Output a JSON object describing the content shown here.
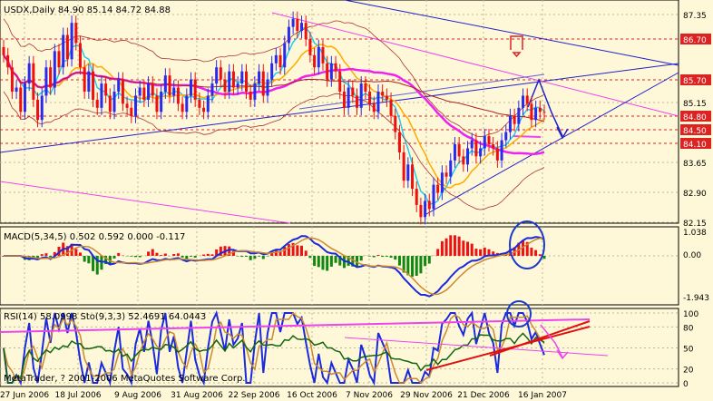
{
  "main_header": "USDX,Daily  84.90 85.14 84.72 84.88",
  "macd_header": "MACD(5,34,5) 0.502 0.592 0.000 -0.117",
  "rsi_header": "RSI(14) 58.0998  Sto(9,3,3) 52.4691 64.0443",
  "copyright": "MetaTrader, ? 2001-2006 MetaQuotes Software Corp.",
  "price_axis": [
    "87.35",
    "86.70",
    "85.70",
    "85.15",
    "84.80",
    "84.50",
    "84.10",
    "83.65",
    "82.90",
    "82.15"
  ],
  "macd_axis": [
    "1.038",
    "0.00",
    "-1.943"
  ],
  "rsi_axis": [
    "100",
    "80",
    "50",
    "20",
    "0"
  ],
  "date_axis": [
    "27 Jun 2006",
    "18 Jul 2006",
    "9 Aug 2006",
    "31 Aug 2006",
    "22 Sep 2006",
    "16 Oct 2006",
    "7 Nov 2006",
    "29 Nov 2006",
    "21 Dec 2006",
    "16 Jan 2007"
  ],
  "chart_data": {
    "type": "candlestick",
    "symbol": "USDX",
    "timeframe": "Daily",
    "last_bar": {
      "open": 84.9,
      "high": 85.14,
      "low": 84.72,
      "close": 84.88
    },
    "ylim": [
      82.15,
      87.35
    ],
    "closes": [
      86.3,
      86.0,
      85.4,
      85.5,
      84.9,
      85.6,
      86.1,
      85.2,
      84.7,
      85.3,
      86.0,
      85.5,
      86.4,
      86.0,
      86.8,
      86.2,
      87.1,
      86.6,
      86.0,
      85.4,
      85.9,
      85.2,
      85.0,
      85.6,
      85.3,
      84.9,
      85.4,
      85.7,
      85.1,
      85.0,
      84.8,
      85.3,
      85.5,
      85.2,
      85.6,
      85.3,
      84.9,
      85.4,
      85.8,
      85.3,
      85.5,
      85.1,
      84.9,
      85.3,
      85.7,
      85.2,
      85.0,
      84.9,
      85.3,
      85.6,
      86.0,
      85.7,
      85.4,
      85.9,
      85.5,
      85.6,
      85.9,
      85.4,
      85.2,
      85.6,
      85.9,
      85.3,
      85.7,
      86.1,
      86.3,
      86.0,
      86.6,
      87.0,
      87.2,
      86.9,
      87.1,
      86.7,
      86.3,
      86.0,
      86.5,
      86.1,
      85.7,
      86.1,
      85.9,
      85.4,
      85.0,
      85.5,
      85.3,
      85.0,
      85.6,
      85.4,
      85.1,
      84.9,
      85.4,
      85.3,
      85.2,
      84.8,
      84.4,
      83.9,
      83.2,
      83.6,
      83.0,
      82.6,
      82.3,
      82.7,
      82.5,
      83.1,
      82.9,
      83.4,
      83.3,
      83.7,
      84.1,
      83.8,
      83.6,
      84.0,
      84.2,
      83.8,
      84.0,
      84.3,
      84.1,
      84.0,
      83.7,
      84.2,
      84.4,
      84.8,
      84.6,
      85.0,
      85.3,
      85.1,
      84.7,
      85.0,
      84.9,
      84.88
    ],
    "annotations": [
      "86.70 red line",
      "85.70 red line",
      "84.80 red line",
      "84.50 red line",
      "84.10 red line"
    ]
  },
  "colors": {
    "bg": "#fff8d8",
    "bull": "#2a2aee",
    "bear": "#ee1010",
    "grid": "#b8b8b8",
    "text": "#000000"
  }
}
